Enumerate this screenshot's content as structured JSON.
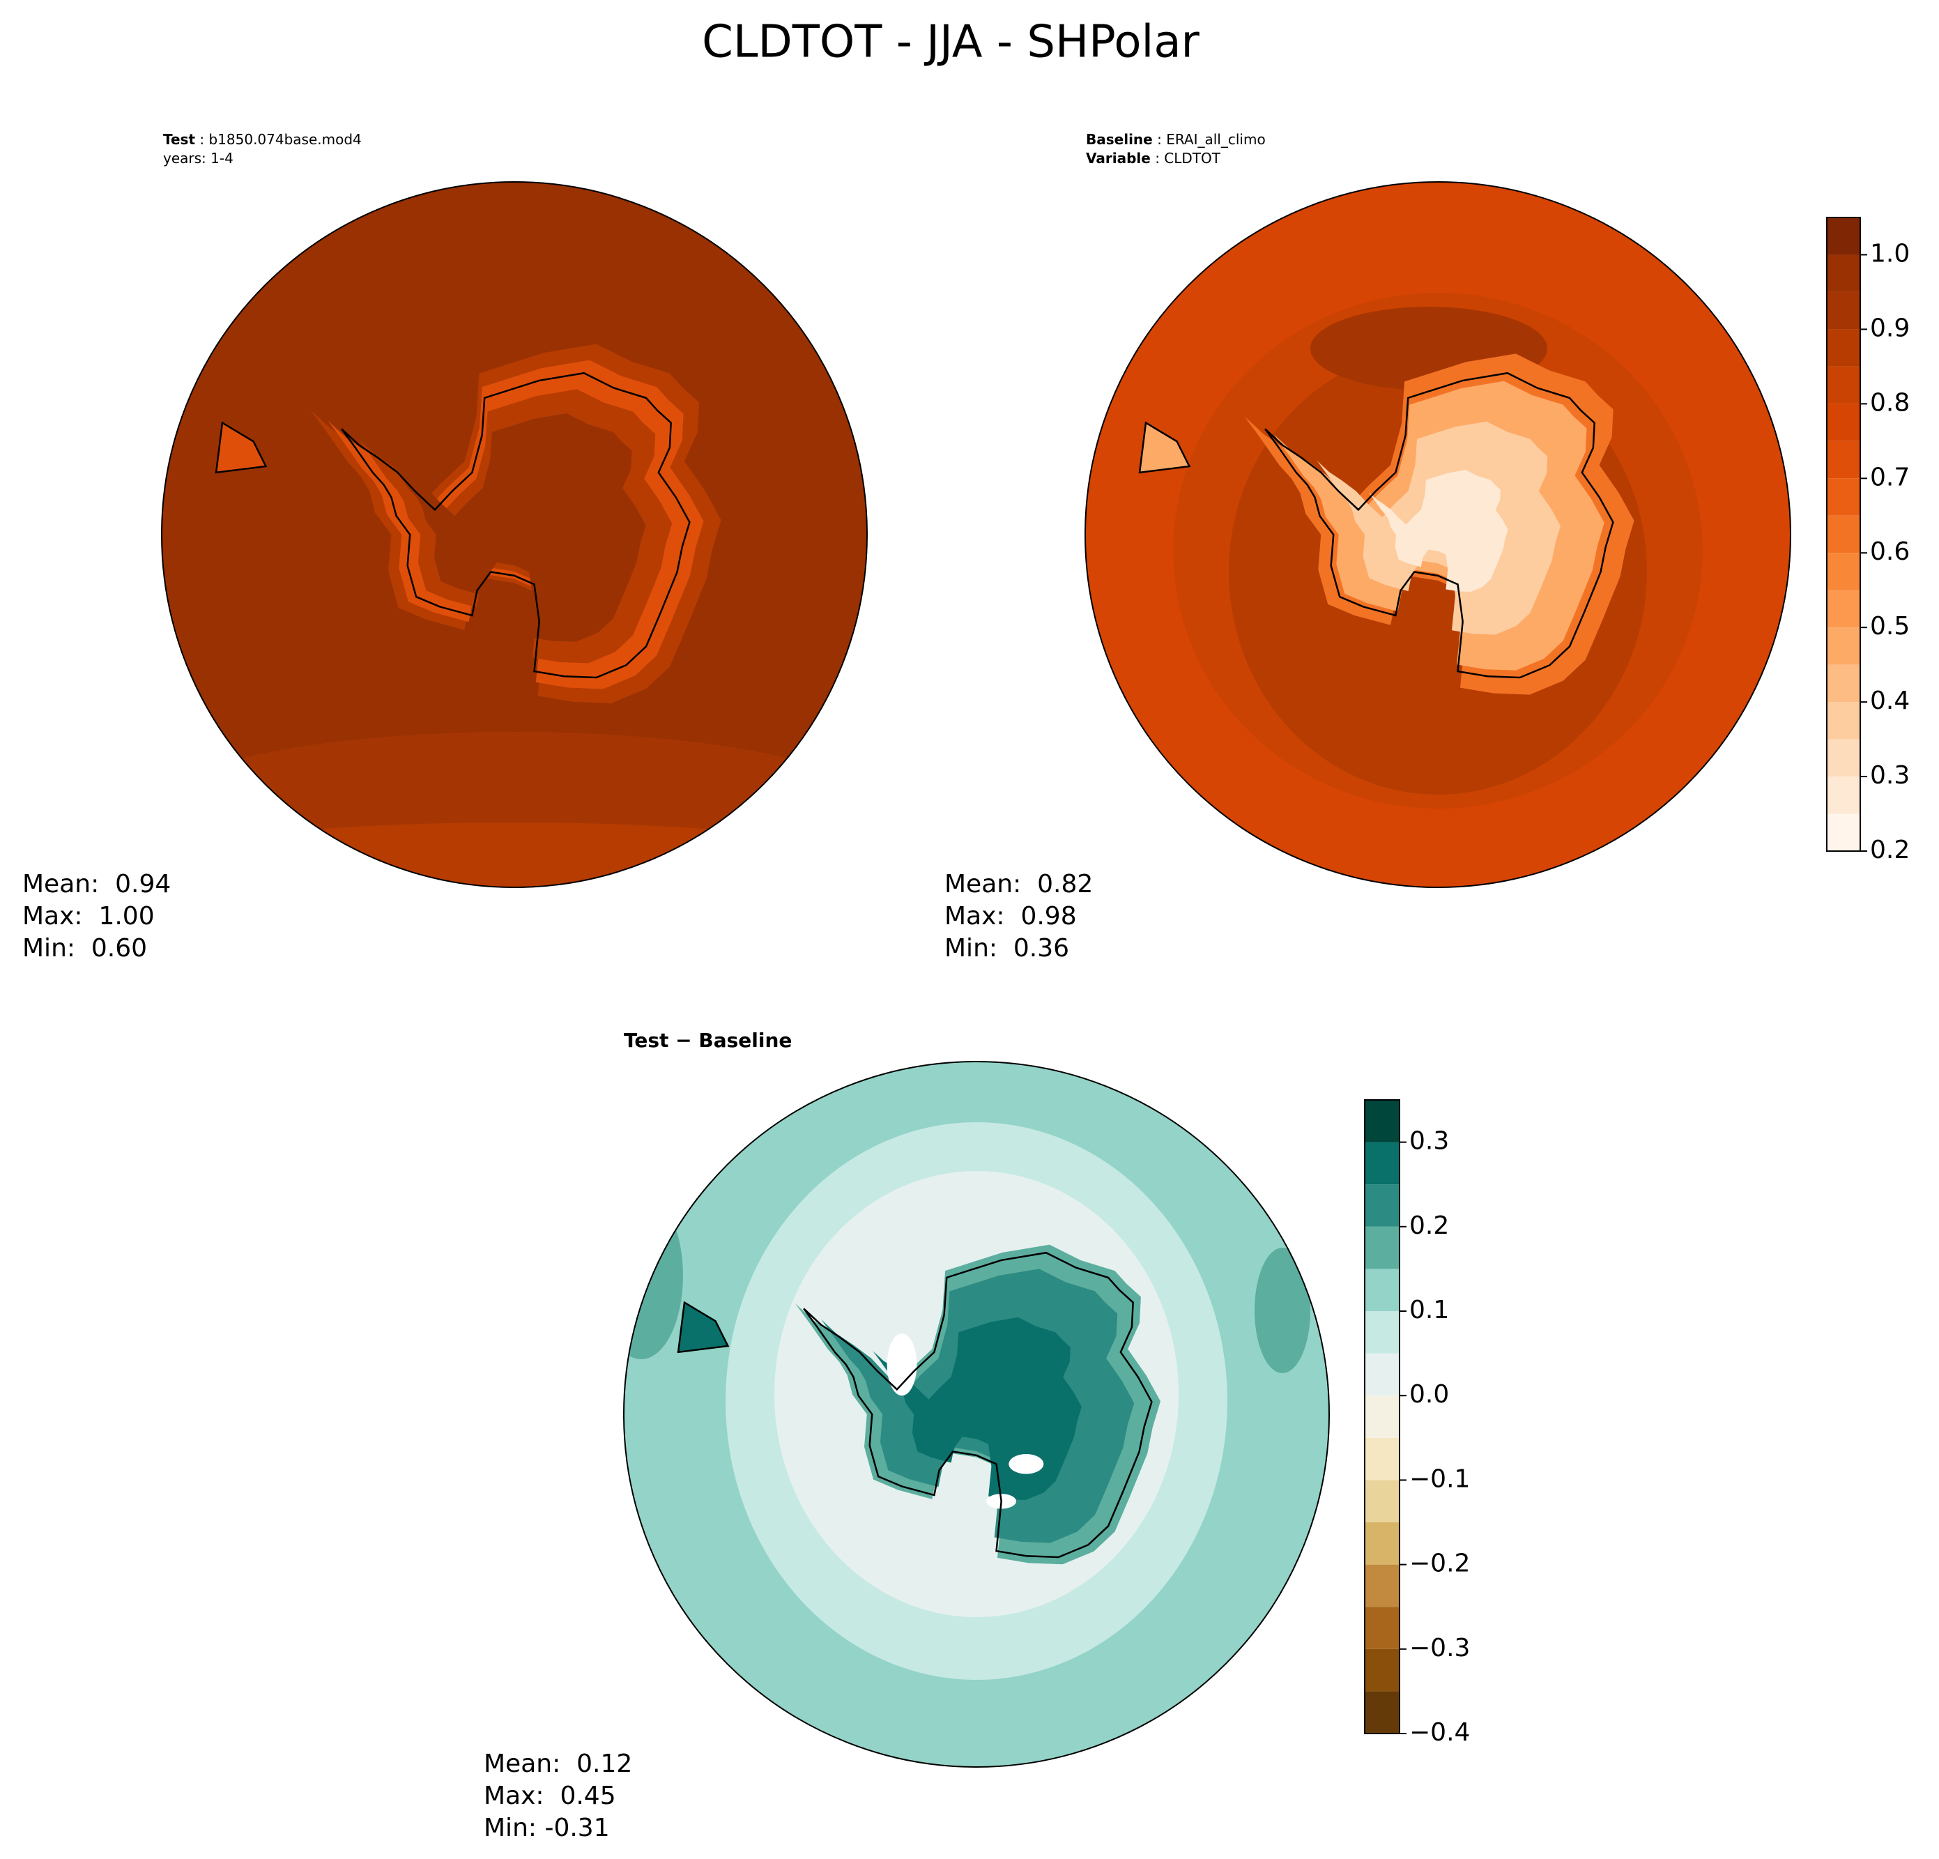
{
  "title": "CLDTOT - JJA - SHPolar",
  "chart_data": [
    {
      "type": "contour",
      "header": [
        {
          "label": "Test",
          "text": " : b1850.074base.mod4"
        },
        {
          "text": "years: 1-4"
        }
      ],
      "stats": [
        "Mean:  0.94",
        "Max:  1.00",
        "Min:  0.60"
      ]
    },
    {
      "type": "contour",
      "header": [
        {
          "label": "Baseline",
          "text": " : ERAI_all_climo"
        },
        {
          "label": "Variable",
          "text": " : CLDTOT"
        }
      ],
      "stats": [
        "Mean:  0.82",
        "Max:  0.98",
        "Min:  0.36"
      ],
      "colorbar": {
        "levels": [
          0.2,
          0.25,
          0.3,
          0.35,
          0.4,
          0.45,
          0.5,
          0.55,
          0.6,
          0.65,
          0.7,
          0.75,
          0.8,
          0.85,
          0.9,
          0.95,
          1.0,
          1.05
        ],
        "colors": [
          "#fff5eb",
          "#fee9d4",
          "#fddcbb",
          "#fdcda0",
          "#fdbc83",
          "#fdaa67",
          "#fd994e",
          "#f98738",
          "#f37325",
          "#ea5f14",
          "#e04f0a",
          "#d64504",
          "#cb4302",
          "#b63c02",
          "#a53603",
          "#993103",
          "#7f2704"
        ],
        "ticks": [
          0.2,
          0.3,
          0.4,
          0.5,
          0.6,
          0.7,
          0.8,
          0.9,
          {
            "value": 1,
            "label": "1.0"
          }
        ]
      }
    },
    {
      "type": "contour",
      "title": "Test − Baseline",
      "stats": [
        "Mean:  0.12",
        "Max:  0.45",
        "Min: -0.31"
      ],
      "colorbar": {
        "levels": [
          -0.4,
          -0.35,
          -0.3,
          -0.25,
          -0.2,
          -0.15,
          -0.1,
          -0.05,
          0,
          0.05,
          0.1,
          0.15,
          0.2,
          0.25,
          0.3,
          0.35
        ],
        "colors": [
          "#643b08",
          "#8a500b",
          "#a7661c",
          "#c18a3e",
          "#d8b469",
          "#e9d49c",
          "#f5e7c1",
          "#f5f1e2",
          "#e6f1ef",
          "#c6e9e4",
          "#93d3c8",
          "#5cae9f",
          "#2c8b82",
          "#09706a",
          "#00463a"
        ],
        "ticks": [
          {
            "value": -0.4,
            "label": "−0.4"
          },
          {
            "value": -0.3,
            "label": "−0.3"
          },
          {
            "value": -0.2,
            "label": "−0.2"
          },
          {
            "value": -0.1,
            "label": "−0.1"
          },
          {
            "value": 0,
            "label": "0.0"
          },
          0.1,
          0.2,
          0.3
        ]
      }
    }
  ]
}
